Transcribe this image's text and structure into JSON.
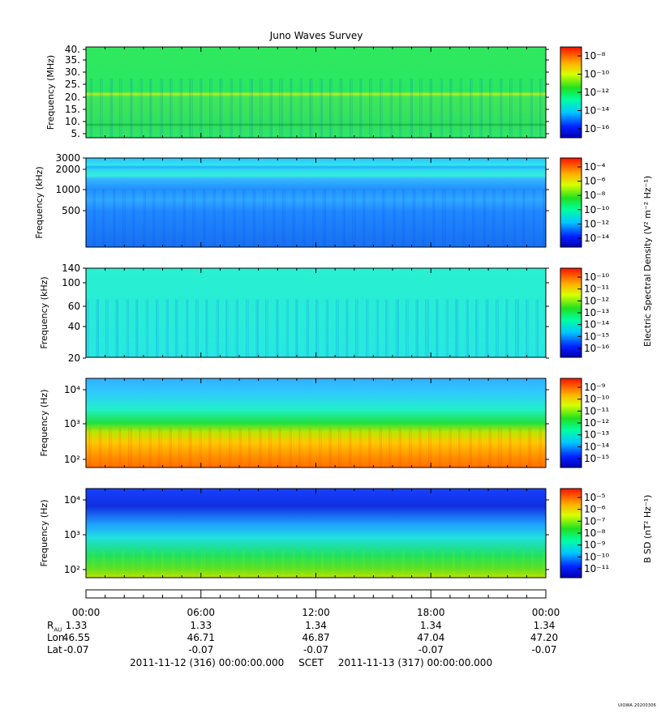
{
  "title": "Juno Waves Survey",
  "footer": {
    "start": "2011-11-12 (316) 00:00:00.000",
    "scet": "SCET",
    "end": "2011-11-13 (317) 00:00:00.000",
    "stamp": "UIOWA 20200306"
  },
  "time_axis": {
    "labels": [
      "00:00",
      "06:00",
      "12:00",
      "18:00",
      "00:00"
    ],
    "rows": [
      {
        "name": "R",
        "sub": "AU",
        "values": [
          "1.33",
          "1.33",
          "1.34",
          "1.34",
          "1.34"
        ]
      },
      {
        "name": "Lon",
        "sub": "",
        "values": [
          "46.55",
          "46.71",
          "46.87",
          "47.04",
          "47.20"
        ]
      },
      {
        "name": "Lat",
        "sub": "",
        "values": [
          "-0.07",
          "-0.07",
          "-0.07",
          "-0.07",
          "-0.07"
        ]
      }
    ]
  },
  "colorbar_labels": {
    "electric": "Electric Spectral Density (V² m⁻² Hz⁻¹)",
    "magnetic": "B SD (nT² Hz⁻¹)"
  },
  "chart_data": [
    {
      "type": "heatmap",
      "panel": "HFR high",
      "ylabel": "Frequency (MHz)",
      "y_ticks": [
        "40.",
        "35.",
        "30.",
        "25.",
        "20.",
        "15.",
        "10.",
        "5."
      ],
      "ylim": [
        3,
        41
      ],
      "colorbar_ticks": [
        "10⁻⁸",
        "10⁻¹⁰",
        "10⁻¹²",
        "10⁻¹⁴",
        "10⁻¹⁶"
      ],
      "colorbar_range_exp": [
        -17,
        -7
      ],
      "description_levels": {
        "background_exp": -13,
        "band_21MHz_exp": -11,
        "band_9MHz_exp": -12
      }
    },
    {
      "type": "heatmap",
      "panel": "HFR low",
      "ylabel": "Frequency (kHz)",
      "y_ticks": [
        "3000",
        "2000",
        "1000",
        "500"
      ],
      "ylim": [
        140,
        3000
      ],
      "y_scale": "log",
      "colorbar_ticks": [
        "10⁻⁴",
        "10⁻⁶",
        "10⁻⁸",
        "10⁻¹⁰",
        "10⁻¹²",
        "10⁻¹⁴"
      ],
      "colorbar_range_exp": [
        -14,
        -3
      ]
    },
    {
      "type": "heatmap",
      "panel": "LFR high",
      "ylabel": "Frequency (kHz)",
      "y_ticks": [
        "140",
        "100",
        "60",
        "40",
        "20"
      ],
      "ylim": [
        20,
        140
      ],
      "y_scale": "log",
      "colorbar_ticks": [
        "10⁻¹⁰",
        "10⁻¹¹",
        "10⁻¹²",
        "10⁻¹³",
        "10⁻¹⁴",
        "10⁻¹⁵",
        "10⁻¹⁶"
      ],
      "colorbar_range_exp": [
        -16,
        -10
      ]
    },
    {
      "type": "heatmap",
      "panel": "LFR electric",
      "ylabel": "Frequency (Hz)",
      "y_ticks": [
        "10⁴",
        "10³",
        "10²"
      ],
      "ylim": [
        50,
        20000
      ],
      "y_scale": "log",
      "colorbar_ticks": [
        "10⁻⁹",
        "10⁻¹⁰",
        "10⁻¹¹",
        "10⁻¹²",
        "10⁻¹³",
        "10⁻¹⁴",
        "10⁻¹⁵"
      ],
      "colorbar_range_exp": [
        -15,
        -9
      ]
    },
    {
      "type": "heatmap",
      "panel": "LFR magnetic",
      "ylabel": "Frequency (Hz)",
      "y_ticks": [
        "10⁴",
        "10³",
        "10²"
      ],
      "ylim": [
        50,
        20000
      ],
      "y_scale": "log",
      "colorbar_ticks": [
        "10⁻⁵",
        "10⁻⁶",
        "10⁻⁷",
        "10⁻⁸",
        "10⁻⁹",
        "10⁻¹⁰",
        "10⁻¹¹"
      ],
      "colorbar_range_exp": [
        -11,
        -4.5
      ]
    }
  ]
}
